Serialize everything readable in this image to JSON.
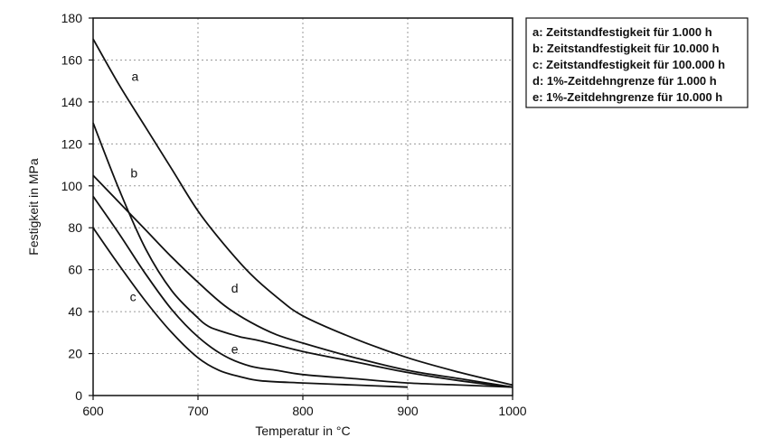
{
  "chart_data": {
    "type": "line",
    "xlabel": "Temperatur in °C",
    "ylabel": "Festigkeit in MPa",
    "xlim": [
      600,
      1000
    ],
    "ylim": [
      0,
      180
    ],
    "x_ticks": [
      600,
      700,
      800,
      900,
      1000
    ],
    "y_ticks": [
      0,
      20,
      40,
      60,
      80,
      100,
      120,
      140,
      160,
      180
    ],
    "grid": true,
    "legend_position": "top-right",
    "legend": [
      "a: Zeitstandfestigkeit für 1.000 h",
      "b: Zeitstandfestigkeit für 10.000 h",
      "c: Zeitstandfestigkeit für 100.000 h",
      "d: 1%-Zeitdehngrenze für 1.000 h",
      "e: 1%-Zeitdehngrenze für 10.000 h"
    ],
    "series": [
      {
        "name": "a",
        "color": "#111111",
        "label_at": [
          640,
          150
        ],
        "x": [
          600,
          625,
          650,
          675,
          700,
          725,
          750,
          775,
          800,
          850,
          900,
          950,
          1000
        ],
        "y": [
          170,
          148,
          128,
          108,
          88,
          72,
          58,
          47,
          38,
          27,
          18,
          11,
          5
        ]
      },
      {
        "name": "b",
        "color": "#111111",
        "label_at": [
          639,
          104
        ],
        "x": [
          600,
          625,
          650,
          675,
          700,
          710,
          720,
          740,
          760,
          800,
          850,
          900,
          950,
          1000
        ],
        "y": [
          130,
          98,
          70,
          50,
          37,
          33,
          31,
          28,
          26,
          21,
          16,
          11,
          7,
          4
        ]
      },
      {
        "name": "c",
        "color": "#111111",
        "label_at": [
          638,
          45
        ],
        "x": [
          600,
          625,
          650,
          675,
          700,
          720,
          740,
          760,
          800,
          850,
          900
        ],
        "y": [
          80,
          62,
          45,
          30,
          18,
          12,
          9,
          7,
          6,
          5,
          4
        ]
      },
      {
        "name": "d",
        "color": "#111111",
        "label_at": [
          735,
          49
        ],
        "x": [
          600,
          625,
          650,
          675,
          700,
          725,
          750,
          775,
          800,
          850,
          900,
          950,
          1000
        ],
        "y": [
          105,
          92,
          79,
          66,
          54,
          43,
          35,
          29,
          25,
          18,
          12,
          8,
          4
        ]
      },
      {
        "name": "e",
        "color": "#111111",
        "label_at": [
          735,
          20
        ],
        "x": [
          600,
          625,
          650,
          675,
          700,
          725,
          750,
          775,
          800,
          850,
          900,
          950,
          1000
        ],
        "y": [
          95,
          77,
          58,
          41,
          28,
          19,
          14,
          12,
          10,
          8,
          6,
          5,
          4
        ]
      }
    ]
  }
}
